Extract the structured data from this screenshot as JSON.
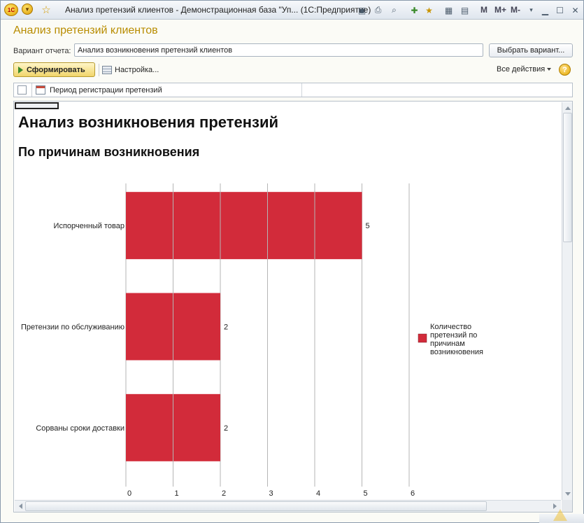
{
  "window": {
    "title": "Анализ претензий клиентов - Демонстрационная база \"Уп...  (1С:Предприятие)",
    "logo_text": "1С",
    "icons": [
      "save-icon",
      "print-icon",
      "print-preview-icon",
      "add-favorite-icon",
      "favorites-icon",
      "calculator-icon",
      "calendar-icon"
    ],
    "mem": {
      "m": "M",
      "m_plus": "M+",
      "m_minus": "M-"
    },
    "controls": {
      "minimize": "▁",
      "restore": "☐",
      "close": "✕"
    }
  },
  "form": {
    "title": "Анализ претензий клиентов",
    "variant_label": "Вариант отчета:",
    "variant_value": "Анализ возникновения претензий клиентов",
    "choose_variant": "Выбрать вариант...",
    "run": "Сформировать",
    "settings": "Настройка...",
    "all_actions": "Все действия",
    "help": "?"
  },
  "settings_row": {
    "label": "Период регистрации претензий",
    "checked": false
  },
  "report": {
    "title": "Анализ возникновения претензий",
    "subtitle": "По причинам возникновения"
  },
  "chart_data": {
    "type": "bar",
    "orientation": "horizontal",
    "categories": [
      "Испорченный товар",
      "Претензии по обслуживанию",
      "Сорваны сроки доставки"
    ],
    "series": [
      {
        "name": "Количество претензий по причинам возникновения",
        "values": [
          5,
          2,
          2
        ],
        "color": "#d22b3a"
      }
    ],
    "xlim": [
      0,
      6
    ],
    "xticks": [
      "0",
      "1",
      "2",
      "3",
      "4",
      "5",
      "6"
    ],
    "grid": true,
    "legend": "right"
  }
}
